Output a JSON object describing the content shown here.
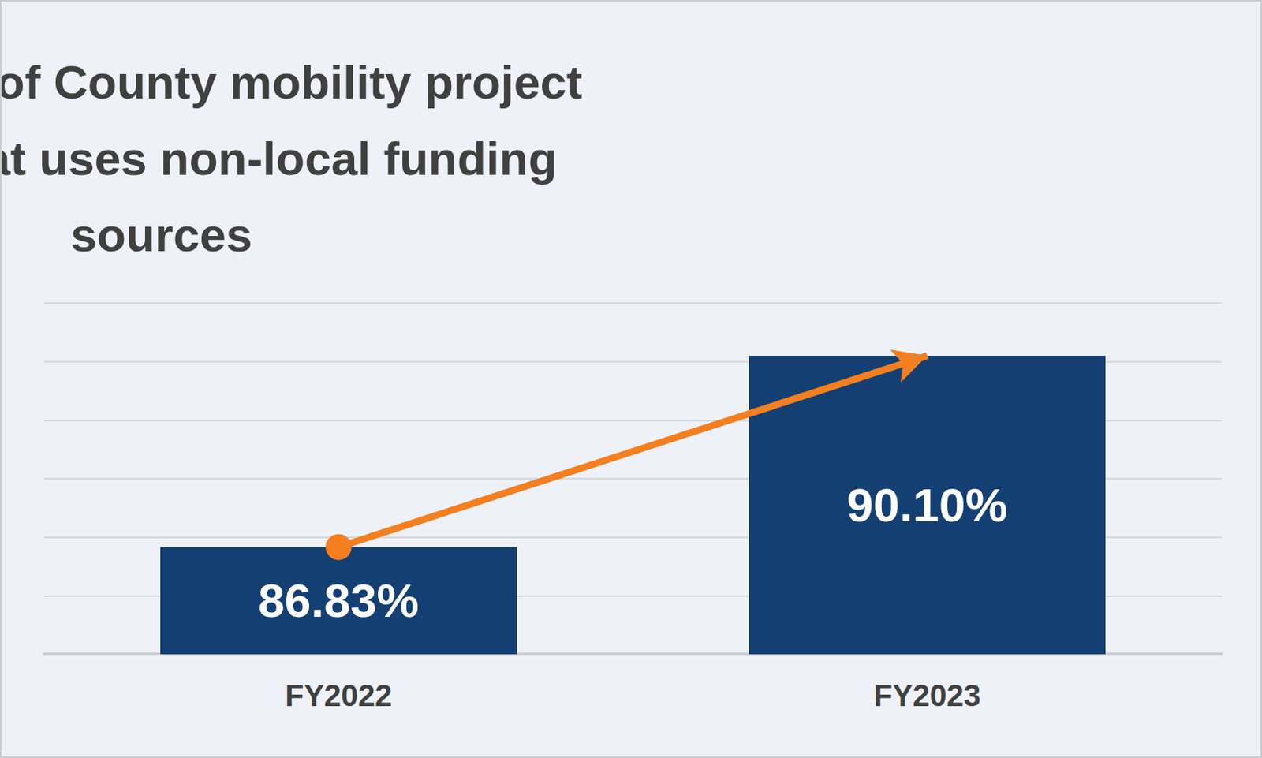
{
  "chart_data": {
    "type": "bar",
    "title": "Percentage of County mobility project funding that uses non-local funding sources",
    "categories": [
      "FY2022",
      "FY2023"
    ],
    "values": [
      86.83,
      90.1
    ],
    "value_labels": [
      "86.83%",
      "90.10%"
    ],
    "color": "#143f73",
    "ylim": [
      85,
      91
    ],
    "yticks": [
      85,
      86,
      87,
      88,
      89,
      90,
      91
    ],
    "grid": true,
    "data_labels": true,
    "tick_labels": "x"
  }
}
